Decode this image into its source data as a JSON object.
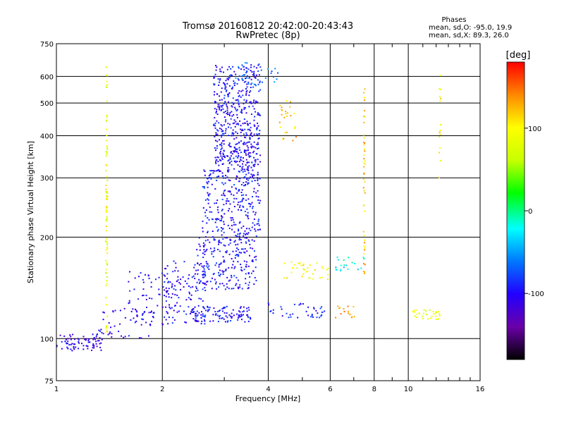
{
  "chart_data": {
    "type": "scatter",
    "title": "Tromsø 20160812 20:42:00-20:43:43",
    "subtitle": "RwPretec (8p)",
    "xlabel": "Frequency [MHz]",
    "ylabel": "Stationary phase Virtual Height [km]",
    "x_scale": "log",
    "y_scale": "log",
    "xlim": [
      1,
      16
    ],
    "ylim": [
      75,
      750
    ],
    "x_ticks": [
      1,
      2,
      4,
      6,
      8,
      10,
      16
    ],
    "x_tick_labels": [
      "1",
      "2",
      "4",
      "6",
      "8",
      "10",
      "16"
    ],
    "x_minor_ticks": [
      3,
      5,
      7,
      9,
      11,
      12,
      13,
      14,
      15
    ],
    "y_ticks": [
      75,
      100,
      200,
      300,
      400,
      500,
      600,
      750
    ],
    "y_tick_labels": [
      "75",
      "100",
      "200",
      "300",
      "400",
      "500",
      "600",
      "750"
    ],
    "grid": true,
    "legend": {
      "title": "Phases",
      "entries": [
        "mean, sd,O: -95.0, 19.9",
        "mean, sd,X: 89.3, 26.0"
      ],
      "placement": "top-right"
    },
    "colorbar": {
      "label": "[deg]",
      "range": [
        -180,
        180
      ],
      "ticks": [
        100,
        0,
        -100
      ],
      "tick_labels": [
        "100",
        "0",
        "-100"
      ],
      "colormap": [
        "#000000",
        "#6a00a8",
        "#2200ff",
        "#0077ff",
        "#00ffff",
        "#00ff00",
        "#c8ff00",
        "#ffff00",
        "#ff8800",
        "#ff0000"
      ]
    },
    "clusters": [
      {
        "x": [
          1.0,
          1.35
        ],
        "y": [
          92,
          103
        ],
        "phase": -110,
        "n": 75
      },
      {
        "x": [
          1.3,
          1.9
        ],
        "y": [
          100,
          125
        ],
        "phase": -105,
        "n": 60
      },
      {
        "x": [
          1.6,
          2.2
        ],
        "y": [
          115,
          160
        ],
        "phase": -100,
        "n": 60
      },
      {
        "x": [
          2.0,
          2.7
        ],
        "y": [
          110,
          170
        ],
        "phase": -100,
        "n": 120
      },
      {
        "x": [
          2.4,
          3.6
        ],
        "y": [
          112,
          125
        ],
        "phase": -95,
        "n": 110
      },
      {
        "x": [
          2.5,
          3.7
        ],
        "y": [
          140,
          200
        ],
        "phase": -95,
        "n": 220
      },
      {
        "x": [
          2.6,
          3.8
        ],
        "y": [
          200,
          320
        ],
        "phase": -95,
        "n": 300
      },
      {
        "x": [
          2.8,
          3.8
        ],
        "y": [
          320,
          500
        ],
        "phase": -100,
        "n": 350
      },
      {
        "x": [
          2.8,
          3.8
        ],
        "y": [
          500,
          650
        ],
        "phase": -95,
        "n": 160
      },
      {
        "x": [
          3.2,
          4.3
        ],
        "y": [
          560,
          660
        ],
        "phase": -60,
        "n": 30
      },
      {
        "x": [
          4.4,
          6.0
        ],
        "y": [
          150,
          170
        ],
        "phase": 95,
        "n": 35
      },
      {
        "x": [
          4.0,
          5.8
        ],
        "y": [
          115,
          128
        ],
        "phase": -90,
        "n": 40
      },
      {
        "x": [
          4.3,
          4.8
        ],
        "y": [
          380,
          520
        ],
        "phase": 120,
        "n": 25
      },
      {
        "x": [
          6.2,
          7.5
        ],
        "y": [
          155,
          175
        ],
        "phase": -20,
        "n": 20
      },
      {
        "x": [
          6.2,
          7.2
        ],
        "y": [
          115,
          125
        ],
        "phase": 130,
        "n": 15
      },
      {
        "x": [
          10.2,
          12.4
        ],
        "y": [
          114,
          122
        ],
        "phase": 80,
        "n": 30
      }
    ],
    "columns": [
      {
        "x": 1.39,
        "y": [
          100,
          690
        ],
        "phase": 85,
        "n": 80
      },
      {
        "x": 7.5,
        "y": [
          140,
          600
        ],
        "phase": 115,
        "n": 45
      },
      {
        "x": 12.3,
        "y": [
          300,
          610
        ],
        "phase": 100,
        "n": 15
      }
    ]
  }
}
